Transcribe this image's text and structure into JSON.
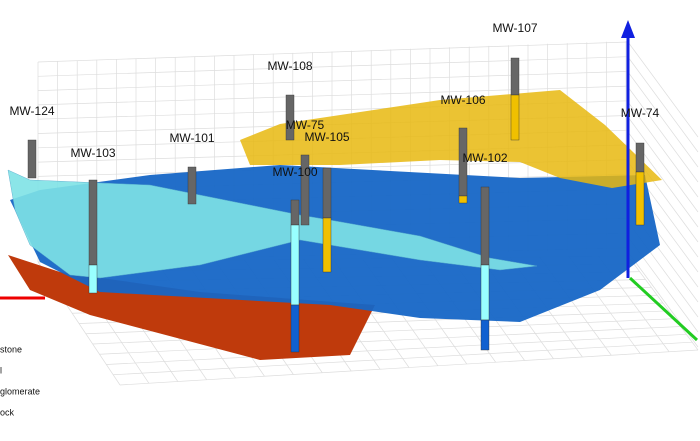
{
  "wells": [
    {
      "label": "MW-124"
    },
    {
      "label": "MW-103"
    },
    {
      "label": "MW-101"
    },
    {
      "label": "MW-108"
    },
    {
      "label": "MW-75"
    },
    {
      "label": "MW-105"
    },
    {
      "label": "MW-100"
    },
    {
      "label": "MW-106"
    },
    {
      "label": "MW-107"
    },
    {
      "label": "MW-74"
    },
    {
      "label": "MW-102"
    }
  ],
  "legend": [
    {
      "label": "stone"
    },
    {
      "label": "l"
    },
    {
      "label": "glomerate"
    },
    {
      "label": "ock"
    }
  ]
}
